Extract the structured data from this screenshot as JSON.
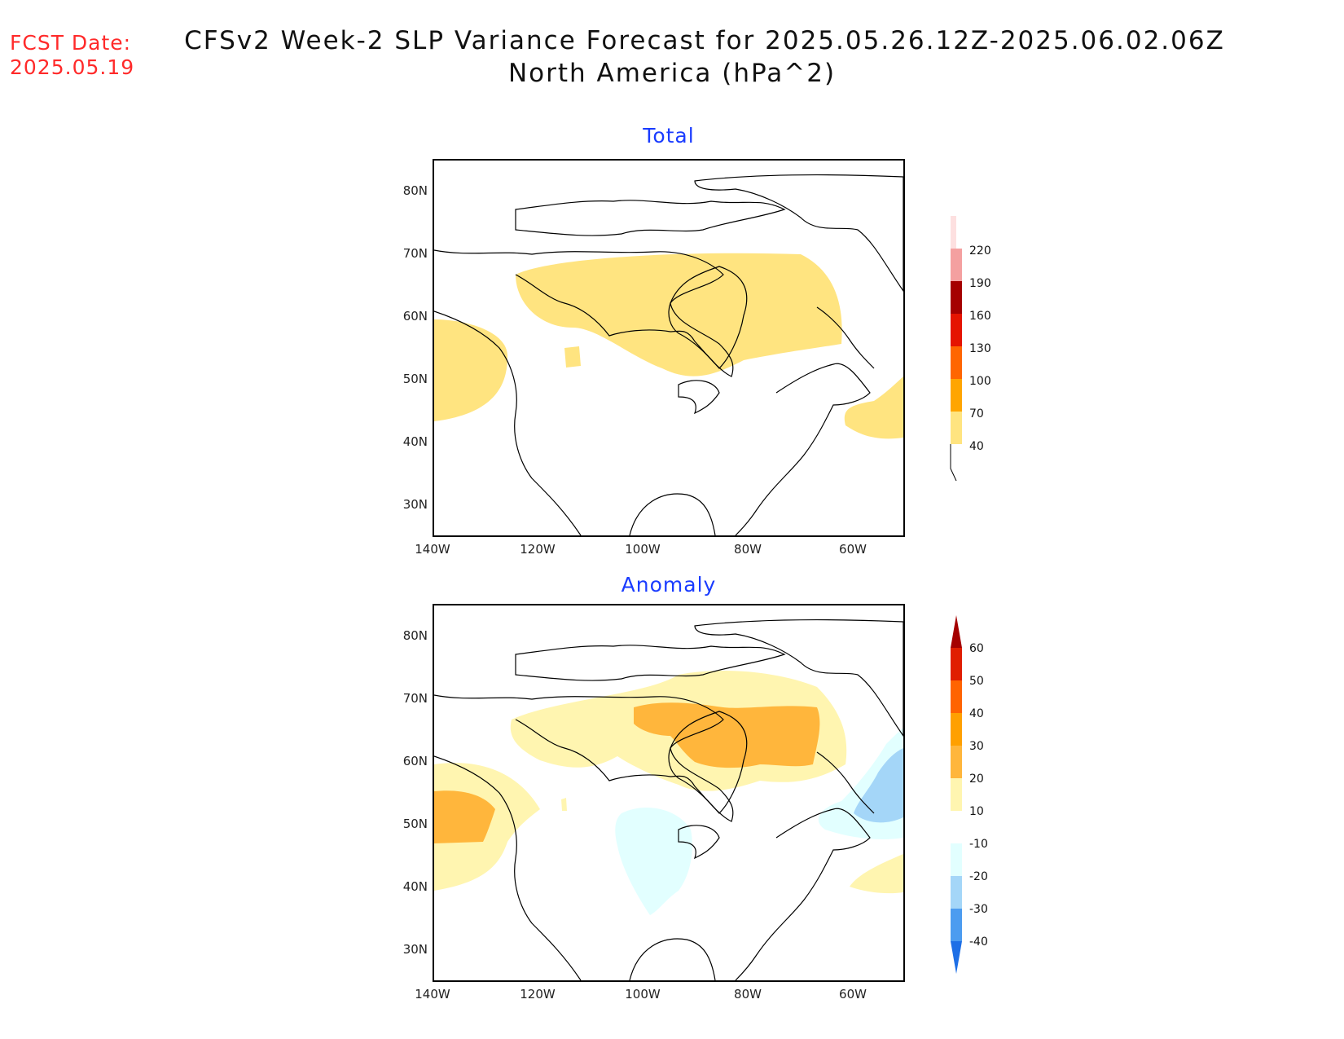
{
  "header": {
    "fcst_label": "FCST Date:",
    "fcst_date": "2025.05.19",
    "title_line1": "CFSv2 Week-2 SLP Variance Forecast for 2025.05.26.12Z-2025.06.02.06Z",
    "title_line2": "North America (hPa^2)"
  },
  "panels": [
    {
      "title": "Total"
    },
    {
      "title": "Anomaly"
    }
  ],
  "axes": {
    "y_ticks": [
      "80N",
      "70N",
      "60N",
      "50N",
      "40N",
      "30N"
    ],
    "x_ticks": [
      "140W",
      "120W",
      "100W",
      "80W",
      "60W"
    ],
    "lat_range": [
      25,
      85
    ],
    "lon_range": [
      -140,
      -50
    ]
  },
  "colors": {
    "total": [
      "#ffe480",
      "#ffa500",
      "#ff6600",
      "#e51400",
      "#a50000",
      "#f4a0a0",
      "#fde0e0"
    ],
    "anomaly": [
      "#1e6fe6",
      "#4c9cf0",
      "#a4d6f8",
      "#e2ffff",
      "#ffffff",
      "#fff5b0",
      "#ffe27c",
      "#ffb63c",
      "#ffa000",
      "#ff6400",
      "#e01e00",
      "#a50000"
    ]
  },
  "colorbars": {
    "total_labels": [
      "220",
      "190",
      "160",
      "130",
      "100",
      "70",
      "40"
    ],
    "anomaly_labels": [
      "60",
      "50",
      "40",
      "30",
      "20",
      "10",
      "-10",
      "-20",
      "-30",
      "-40"
    ]
  },
  "chart_data": [
    {
      "type": "heatmap",
      "title": "Total",
      "units": "hPa^2",
      "contour_levels": [
        40,
        70,
        100,
        130,
        160,
        190,
        220
      ],
      "regions": [
        {
          "area": "Northern Canada (65N, 120W to 65W)",
          "range": "40-70"
        },
        {
          "area": "Pacific coast (45-60N, 140-130W)",
          "range": "40-70"
        },
        {
          "area": "Western Atlantic (40-47N, 60-50W)",
          "range": "40-70"
        }
      ]
    },
    {
      "type": "heatmap",
      "title": "Anomaly",
      "units": "hPa^2",
      "contour_levels": [
        -40,
        -30,
        -20,
        -10,
        10,
        20,
        30,
        40,
        50,
        60
      ],
      "regions": [
        {
          "area": "Hudson Bay / Northern Canada",
          "range": "20-30"
        },
        {
          "area": "Pacific coast (48-55N, 140-130W)",
          "range": "20-30"
        },
        {
          "area": "Northern Canada broad band",
          "range": "10-20"
        },
        {
          "area": "Labrador Sea",
          "range": "-20 to -10"
        },
        {
          "area": "Northern Plains",
          "range": "-10"
        }
      ]
    }
  ]
}
